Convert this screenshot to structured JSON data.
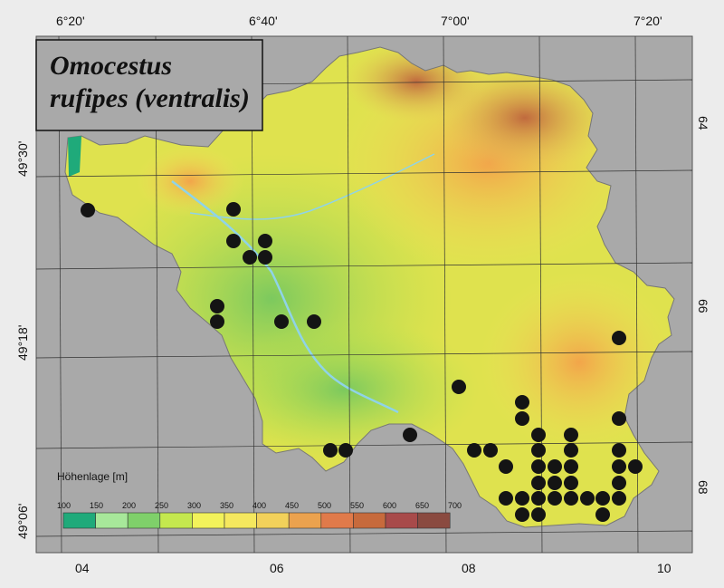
{
  "title_line1": "Omocestus",
  "title_line2": "rufipes (ventralis)",
  "top_ticks": [
    "6°20'",
    "6°40'",
    "7°00'",
    "7°20'"
  ],
  "left_ticks": [
    "49°30'",
    "49°18'",
    "49°06'"
  ],
  "right_ticks": [
    "64",
    "66",
    "68"
  ],
  "bottom_ticks": [
    "04",
    "06",
    "08",
    "10"
  ],
  "legend": {
    "title": "Höhenlage [m]",
    "labels": [
      "100",
      "150",
      "200",
      "250",
      "300",
      "350",
      "400",
      "450",
      "500",
      "550",
      "600",
      "650",
      "700"
    ],
    "colors": [
      "#1faa7a",
      "#a7e89a",
      "#7fd06a",
      "#c4e84e",
      "#f2f25a",
      "#f5e85e",
      "#f2d15a",
      "#eba24e",
      "#e07a4a",
      "#c76a3c",
      "#a84a4a",
      "#8a4a40",
      "#5a3a4a"
    ]
  },
  "occurrences": [
    [
      97,
      232
    ],
    [
      258,
      231
    ],
    [
      258,
      266
    ],
    [
      293,
      266
    ],
    [
      276,
      284
    ],
    [
      293,
      284
    ],
    [
      240,
      338
    ],
    [
      240,
      355
    ],
    [
      311,
      355
    ],
    [
      347,
      355
    ],
    [
      684,
      373
    ],
    [
      507,
      427
    ],
    [
      577,
      444
    ],
    [
      577,
      462
    ],
    [
      684,
      462
    ],
    [
      453,
      480
    ],
    [
      595,
      480
    ],
    [
      631,
      480
    ],
    [
      365,
      497
    ],
    [
      382,
      497
    ],
    [
      524,
      497
    ],
    [
      542,
      497
    ],
    [
      595,
      497
    ],
    [
      631,
      497
    ],
    [
      684,
      497
    ],
    [
      559,
      515
    ],
    [
      595,
      515
    ],
    [
      613,
      515
    ],
    [
      631,
      515
    ],
    [
      684,
      515
    ],
    [
      702,
      515
    ],
    [
      595,
      533
    ],
    [
      613,
      533
    ],
    [
      631,
      533
    ],
    [
      684,
      533
    ],
    [
      559,
      550
    ],
    [
      577,
      550
    ],
    [
      595,
      550
    ],
    [
      613,
      550
    ],
    [
      631,
      550
    ],
    [
      649,
      550
    ],
    [
      666,
      550
    ],
    [
      684,
      550
    ],
    [
      577,
      568
    ],
    [
      595,
      568
    ],
    [
      666,
      568
    ]
  ]
}
